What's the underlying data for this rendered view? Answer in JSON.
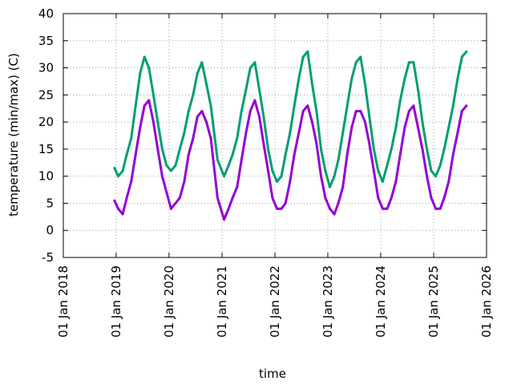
{
  "chart_data": {
    "type": "line",
    "xlabel": "time",
    "ylabel": "temperature (min/max) (C)",
    "ylim": [
      -5,
      40
    ],
    "xlim": [
      "2018-01-01",
      "2026-01-01"
    ],
    "y_ticks": [
      "-5",
      "0",
      "5",
      "10",
      "15",
      "20",
      "25",
      "30",
      "35",
      "40"
    ],
    "x_ticks": [
      {
        "date": "2018-01-01",
        "label": "01 Jan 2018"
      },
      {
        "date": "2019-01-01",
        "label": "01 Jan 2019"
      },
      {
        "date": "2020-01-01",
        "label": "01 Jan 2020"
      },
      {
        "date": "2021-01-01",
        "label": "01 Jan 2021"
      },
      {
        "date": "2022-01-01",
        "label": "01 Jan 2022"
      },
      {
        "date": "2023-01-01",
        "label": "01 Jan 2023"
      },
      {
        "date": "2024-01-01",
        "label": "01 Jan 2024"
      },
      {
        "date": "2025-01-01",
        "label": "01 Jan 2025"
      },
      {
        "date": "2026-01-01",
        "label": "01 Jan 2026"
      }
    ],
    "grid": true,
    "legend": "none",
    "series": [
      {
        "color": "#9400d3",
        "x": [
          "2018-12-20",
          "2019-01-15",
          "2019-02-15",
          "2019-03-15",
          "2019-04-15",
          "2019-05-15",
          "2019-06-15",
          "2019-07-15",
          "2019-08-15",
          "2019-09-15",
          "2019-10-15",
          "2019-11-15",
          "2019-12-15",
          "2020-01-15",
          "2020-02-15",
          "2020-03-15",
          "2020-04-15",
          "2020-05-15",
          "2020-06-15",
          "2020-07-15",
          "2020-08-15",
          "2020-09-15",
          "2020-10-15",
          "2020-12-01",
          "2021-01-15",
          "2021-02-15",
          "2021-03-15",
          "2021-04-15",
          "2021-05-15",
          "2021-06-15",
          "2021-07-15",
          "2021-08-15",
          "2021-09-15",
          "2021-10-15",
          "2021-11-15",
          "2021-12-15",
          "2022-01-15",
          "2022-02-15",
          "2022-03-15",
          "2022-04-15",
          "2022-05-15",
          "2022-06-15",
          "2022-07-15",
          "2022-08-15",
          "2022-09-15",
          "2022-10-15",
          "2022-11-15",
          "2022-12-15",
          "2023-01-15",
          "2023-02-15",
          "2023-03-15",
          "2023-04-15",
          "2023-05-15",
          "2023-06-15",
          "2023-07-15",
          "2023-08-15",
          "2023-09-15",
          "2023-10-15",
          "2023-11-15",
          "2023-12-15",
          "2024-01-15",
          "2024-02-15",
          "2024-03-15",
          "2024-04-15",
          "2024-05-15",
          "2024-06-15",
          "2024-07-15",
          "2024-08-15",
          "2024-09-15",
          "2024-10-15",
          "2024-11-15",
          "2024-12-15",
          "2025-01-15",
          "2025-02-15",
          "2025-03-15",
          "2025-04-15",
          "2025-05-15",
          "2025-06-15",
          "2025-07-15",
          "2025-08-15"
        ],
        "y": [
          5.5,
          4,
          3,
          6,
          9,
          14,
          19,
          23,
          24,
          20,
          15,
          10,
          7,
          4,
          5,
          6,
          9,
          14,
          17,
          21,
          22,
          20,
          17,
          6,
          2,
          4,
          6,
          8,
          13,
          18,
          22,
          24,
          21,
          16,
          11,
          6,
          4,
          4,
          5,
          9,
          14,
          18,
          22,
          23,
          20,
          16,
          10,
          6,
          4,
          3,
          5,
          8,
          14,
          19,
          22,
          22,
          20,
          16,
          11,
          6,
          4,
          4,
          6,
          9,
          14,
          19,
          22,
          23,
          19,
          15,
          10,
          6,
          4,
          4,
          6,
          9,
          14,
          18,
          22,
          23
        ]
      },
      {
        "color": "#009e73",
        "x": [
          "2018-12-20",
          "2019-01-15",
          "2019-02-15",
          "2019-03-15",
          "2019-04-15",
          "2019-05-15",
          "2019-06-15",
          "2019-07-15",
          "2019-08-15",
          "2019-09-15",
          "2019-10-15",
          "2019-11-15",
          "2019-12-15",
          "2020-01-15",
          "2020-02-15",
          "2020-03-15",
          "2020-04-15",
          "2020-05-15",
          "2020-06-15",
          "2020-07-15",
          "2020-08-15",
          "2020-09-15",
          "2020-10-15",
          "2020-12-01",
          "2021-01-15",
          "2021-02-15",
          "2021-03-15",
          "2021-04-15",
          "2021-05-15",
          "2021-06-15",
          "2021-07-15",
          "2021-08-15",
          "2021-09-15",
          "2021-10-15",
          "2021-11-15",
          "2021-12-15",
          "2022-01-15",
          "2022-02-15",
          "2022-03-15",
          "2022-04-15",
          "2022-05-15",
          "2022-06-15",
          "2022-07-15",
          "2022-08-15",
          "2022-09-15",
          "2022-10-15",
          "2022-11-15",
          "2022-12-15",
          "2023-01-15",
          "2023-02-15",
          "2023-03-15",
          "2023-04-15",
          "2023-05-15",
          "2023-06-15",
          "2023-07-15",
          "2023-08-15",
          "2023-09-15",
          "2023-10-15",
          "2023-11-15",
          "2023-12-15",
          "2024-01-15",
          "2024-02-15",
          "2024-03-15",
          "2024-04-15",
          "2024-05-15",
          "2024-06-15",
          "2024-07-15",
          "2024-08-15",
          "2024-09-15",
          "2024-10-15",
          "2024-11-15",
          "2024-12-15",
          "2025-01-15",
          "2025-02-15",
          "2025-03-15",
          "2025-04-15",
          "2025-05-15",
          "2025-06-15",
          "2025-07-15",
          "2025-08-15"
        ],
        "y": [
          11.5,
          10,
          11,
          14,
          17,
          23,
          29,
          32,
          30,
          25,
          20,
          15,
          12,
          11,
          12,
          15,
          18,
          22,
          25,
          29,
          31,
          27,
          23,
          13,
          10,
          12,
          14,
          17,
          22,
          26,
          30,
          31,
          26,
          21,
          15,
          11,
          9,
          10,
          14,
          18,
          23,
          28,
          32,
          33,
          27,
          22,
          15,
          11,
          8,
          10,
          13,
          18,
          23,
          28,
          31,
          32,
          27,
          21,
          15,
          11,
          9,
          12,
          15,
          19,
          24,
          28,
          31,
          31,
          26,
          20,
          15,
          11,
          10,
          12,
          15,
          19,
          23,
          28,
          32,
          33
        ]
      }
    ]
  }
}
